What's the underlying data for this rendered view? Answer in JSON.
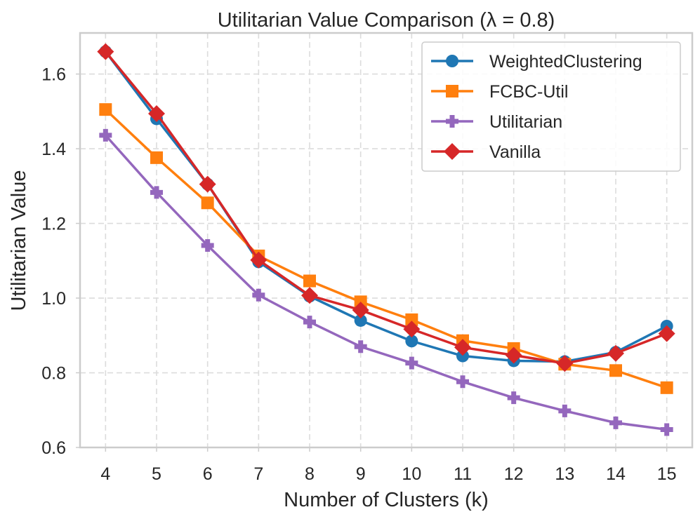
{
  "chart_data": {
    "type": "line",
    "title": "Utilitarian Value Comparison (λ = 0.8)",
    "xlabel": "Number of Clusters (k)",
    "ylabel": "Utilitarian Value",
    "x": [
      4,
      5,
      6,
      7,
      8,
      9,
      10,
      11,
      12,
      13,
      14,
      15
    ],
    "xlim": [
      3.5,
      15.5
    ],
    "ylim": [
      0.6,
      1.71
    ],
    "yticks": [
      0.6,
      0.8,
      1.0,
      1.2,
      1.4,
      1.6
    ],
    "ytick_labels": [
      "0.6",
      "0.8",
      "1.0",
      "1.2",
      "1.4",
      "1.6"
    ],
    "xtick_labels": [
      "4",
      "5",
      "6",
      "7",
      "8",
      "9",
      "10",
      "11",
      "12",
      "13",
      "14",
      "15"
    ],
    "grid": true,
    "legend_position": "top-right",
    "series": [
      {
        "name": "WeightedClustering",
        "color": "#1f77b4",
        "marker": "circle",
        "values": [
          1.66,
          1.48,
          1.305,
          1.097,
          1.005,
          0.94,
          0.885,
          0.845,
          0.832,
          0.83,
          0.855,
          0.925
        ]
      },
      {
        "name": "FCBC-Util",
        "color": "#ff7f0e",
        "marker": "square",
        "values": [
          1.505,
          1.376,
          1.255,
          1.113,
          1.046,
          0.99,
          0.942,
          0.886,
          0.865,
          0.823,
          0.806,
          0.76
        ]
      },
      {
        "name": "Utilitarian",
        "color": "#9467bd",
        "marker": "plus",
        "values": [
          1.436,
          1.283,
          1.141,
          1.008,
          0.936,
          0.87,
          0.826,
          0.776,
          0.733,
          0.698,
          0.666,
          0.648
        ]
      },
      {
        "name": "Vanilla",
        "color": "#d62728",
        "marker": "diamond",
        "values": [
          1.66,
          1.494,
          1.305,
          1.102,
          1.007,
          0.968,
          0.917,
          0.868,
          0.847,
          0.825,
          0.852,
          0.905
        ]
      }
    ]
  }
}
